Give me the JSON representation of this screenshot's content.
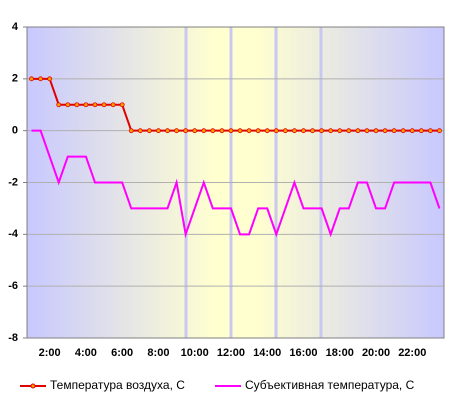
{
  "chart_data": {
    "type": "line",
    "categories": [
      null,
      null,
      "2:00",
      null,
      null,
      null,
      "4:00",
      null,
      null,
      null,
      "6:00",
      null,
      null,
      null,
      "8:00",
      null,
      null,
      null,
      "10:00",
      null,
      null,
      null,
      "12:00",
      null,
      null,
      null,
      "14:00",
      null,
      null,
      null,
      "16:00",
      null,
      null,
      null,
      "18:00",
      null,
      null,
      null,
      "20:00",
      null,
      null,
      null,
      "22:00",
      null,
      null,
      null
    ],
    "series": [
      {
        "name": "Температура воздуха, С",
        "color": "#e00000",
        "marker": true,
        "values": [
          2,
          2,
          2,
          1,
          1,
          1,
          1,
          1,
          1,
          1,
          1,
          0,
          0,
          0,
          0,
          0,
          0,
          0,
          0,
          0,
          0,
          0,
          0,
          0,
          0,
          0,
          0,
          0,
          0,
          0,
          0,
          0,
          0,
          0,
          0,
          0,
          0,
          0,
          0,
          0,
          0,
          0,
          0,
          0,
          0,
          0
        ]
      },
      {
        "name": "Субъективная температура, С",
        "color": "#ff00ff",
        "marker": false,
        "values": [
          0,
          0,
          -1,
          -2,
          -1,
          -1,
          -1,
          -2,
          -2,
          -2,
          -2,
          -3,
          -3,
          -3,
          -3,
          -3,
          -2,
          -4,
          -3,
          -2,
          -3,
          -3,
          -3,
          -4,
          -4,
          -3,
          -3,
          -4,
          -3,
          -2,
          -3,
          -3,
          -3,
          -4,
          -3,
          -3,
          -2,
          -2,
          -3,
          -3,
          -2,
          -2,
          -2,
          -2,
          -2,
          -3
        ]
      }
    ],
    "ylim": [
      -8,
      4
    ],
    "yticks": [
      -8,
      -6,
      -4,
      -2,
      0,
      2,
      4
    ],
    "grid": true
  }
}
